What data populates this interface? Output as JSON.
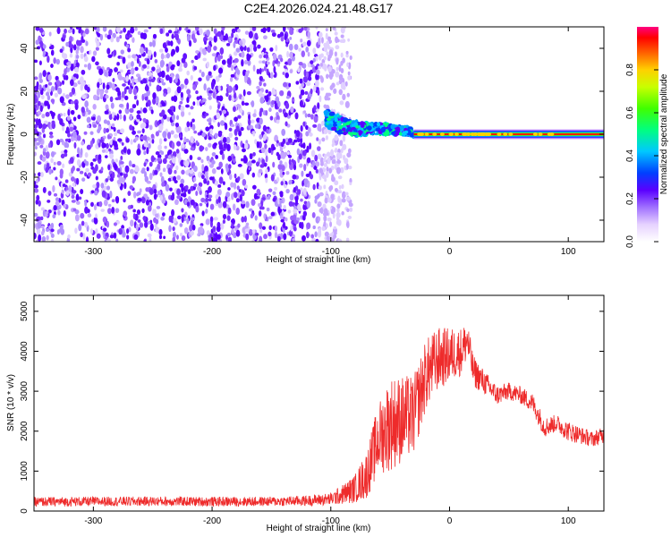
{
  "title": "C2E4.2026.024.21.48.G17",
  "chart_data": [
    {
      "type": "heatmap",
      "xlabel": "Height of straight line (km)",
      "ylabel": "Frequency (Hz)",
      "xlim": [
        -350,
        130
      ],
      "ylim": [
        -50,
        50
      ],
      "xticks": [
        -300,
        -200,
        -100,
        0,
        100
      ],
      "yticks": [
        -40,
        -20,
        0,
        20,
        40
      ],
      "colorbar": {
        "label": "Normalized spectral amplitude",
        "range": [
          0.0,
          1.0
        ],
        "ticks": [
          0.0,
          0.2,
          0.4,
          0.6,
          0.8
        ],
        "tick_labels": [
          "0.0",
          "0.2",
          "0.4",
          "0.6",
          "0.8"
        ]
      },
      "regions": [
        {
          "name": "noise",
          "x_range": [
            -350,
            -95
          ],
          "freq_range": [
            -50,
            50
          ],
          "amplitude": [
            0.05,
            0.2
          ]
        },
        {
          "name": "transition",
          "x_range": [
            -105,
            -30
          ],
          "freq_center": [
            8,
            0
          ],
          "amplitude": [
            0.3,
            0.6
          ]
        },
        {
          "name": "carrier",
          "x_range": [
            -30,
            130
          ],
          "freq_center": 0,
          "amplitude": [
            0.8,
            1.0
          ]
        }
      ]
    },
    {
      "type": "line",
      "xlabel": "Height of straight line (km)",
      "ylabel": "SNR (10 * v/v)",
      "xlim": [
        -350,
        130
      ],
      "ylim": [
        0,
        5400
      ],
      "xticks": [
        -300,
        -200,
        -100,
        0,
        100
      ],
      "yticks": [
        0,
        1000,
        2000,
        3000,
        4000,
        5000
      ],
      "color": "#ee2b2b",
      "series": [
        {
          "name": "SNR",
          "x": [
            -350,
            -300,
            -250,
            -200,
            -150,
            -120,
            -100,
            -90,
            -80,
            -70,
            -60,
            -50,
            -40,
            -30,
            -20,
            -10,
            0,
            10,
            15,
            20,
            30,
            40,
            50,
            60,
            70,
            80,
            90,
            100,
            110,
            120,
            130
          ],
          "y": [
            230,
            240,
            245,
            235,
            240,
            260,
            300,
            420,
            550,
            900,
            1800,
            2200,
            2300,
            2400,
            3400,
            3800,
            3900,
            4000,
            4300,
            3500,
            3200,
            2900,
            3000,
            2900,
            2700,
            2100,
            2200,
            2000,
            1900,
            1800,
            1900
          ],
          "spread": [
            120,
            120,
            120,
            120,
            120,
            130,
            160,
            250,
            350,
            600,
            900,
            1200,
            1100,
            1000,
            900,
            800,
            700,
            600,
            500,
            400,
            300,
            250,
            220,
            220,
            250,
            250,
            220,
            250,
            220,
            200,
            200
          ]
        }
      ]
    }
  ]
}
